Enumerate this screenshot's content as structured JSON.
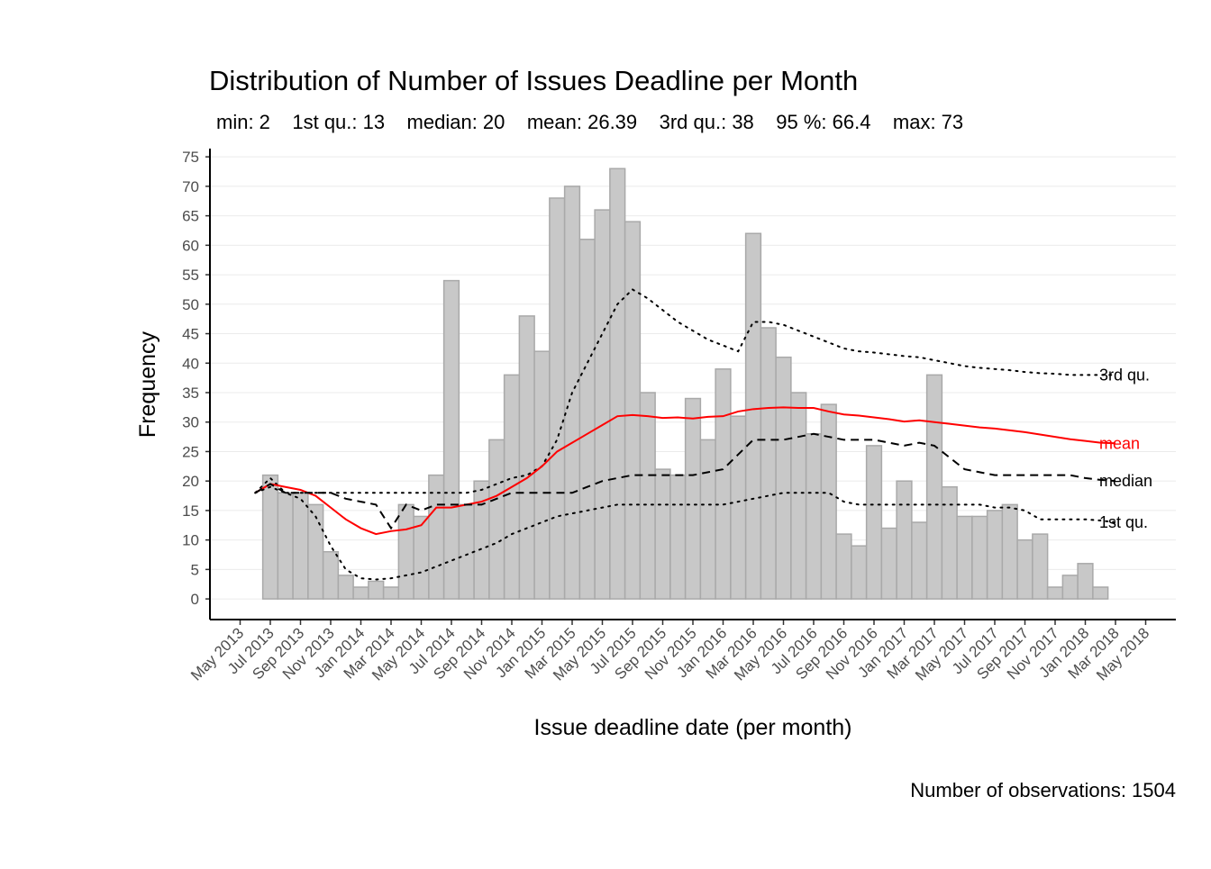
{
  "chart_data": {
    "type": "bar",
    "title": "Distribution of Number of Issues Deadline per Month",
    "subtitle": "min: 2    1st qu.: 13    median: 20    mean: 26.39    3rd qu.: 38    95 %: 66.4    max: 73",
    "caption": "Number of observations: 1504",
    "x_label": "Issue deadline date (per month)",
    "y_label": "Frequency",
    "x": [
      "Jun 2013",
      "Jul 2013",
      "Aug 2013",
      "Sep 2013",
      "Oct 2013",
      "Nov 2013",
      "Dec 2013",
      "Jan 2014",
      "Feb 2014",
      "Mar 2014",
      "Apr 2014",
      "May 2014",
      "Jun 2014",
      "Jul 2014",
      "Aug 2014",
      "Sep 2014",
      "Oct 2014",
      "Nov 2014",
      "Dec 2014",
      "Jan 2015",
      "Feb 2015",
      "Mar 2015",
      "Apr 2015",
      "May 2015",
      "Jun 2015",
      "Jul 2015",
      "Aug 2015",
      "Sep 2015",
      "Oct 2015",
      "Nov 2015",
      "Dec 2015",
      "Jan 2016",
      "Feb 2016",
      "Mar 2016",
      "Apr 2016",
      "May 2016",
      "Jun 2016",
      "Jul 2016",
      "Aug 2016",
      "Sep 2016",
      "Oct 2016",
      "Nov 2016",
      "Dec 2016",
      "Jan 2017",
      "Feb 2017",
      "Mar 2017",
      "Apr 2017",
      "May 2017",
      "Jun 2017",
      "Jul 2017",
      "Aug 2017",
      "Sep 2017",
      "Oct 2017",
      "Nov 2017",
      "Dec 2017",
      "Jan 2018",
      "Feb 2018",
      "Mar 2018"
    ],
    "xlim": [
      "Mar 2013",
      "Jul 2018"
    ],
    "xticks": [
      "May 2013",
      "Jul 2013",
      "Sep 2013",
      "Nov 2013",
      "Jan 2014",
      "Mar 2014",
      "May 2014",
      "Jul 2014",
      "Sep 2014",
      "Nov 2014",
      "Jan 2015",
      "Mar 2015",
      "May 2015",
      "Jul 2015",
      "Sep 2015",
      "Nov 2015",
      "Jan 2016",
      "Mar 2016",
      "May 2016",
      "Jul 2016",
      "Sep 2016",
      "Nov 2016",
      "Jan 2017",
      "Mar 2017",
      "May 2017",
      "Jul 2017",
      "Sep 2017",
      "Nov 2017",
      "Jan 2018",
      "Mar 2018",
      "May 2018"
    ],
    "ylim": [
      -3.5,
      76.4
    ],
    "yticks": [
      0,
      5,
      10,
      15,
      20,
      25,
      30,
      35,
      40,
      45,
      50,
      55,
      60,
      65,
      70,
      75
    ],
    "grid": true,
    "series": [
      {
        "type": "bar",
        "color": "#c8c8c8",
        "edge_color": "#a9a9a9",
        "values": [
          null,
          21,
          18,
          18,
          16,
          8,
          4,
          2,
          3,
          2,
          16,
          14,
          21,
          54,
          16,
          20,
          27,
          38,
          48,
          42,
          68,
          70,
          61,
          66,
          73,
          64,
          35,
          22,
          21,
          34,
          27,
          39,
          31,
          62,
          46,
          41,
          35,
          28,
          33,
          11,
          9,
          26,
          12,
          20,
          13,
          38,
          19,
          14,
          14,
          15,
          16,
          10,
          11,
          2,
          4,
          6,
          2,
          null
        ]
      },
      {
        "type": "line",
        "name": "3rd qu.",
        "color": "#000000",
        "dash": "dotted",
        "values": [
          18,
          20.5,
          18,
          18,
          18,
          18,
          18,
          18,
          18,
          18,
          18,
          18,
          18,
          18,
          18,
          18.5,
          19.5,
          20.5,
          21,
          22.5,
          27,
          35,
          40,
          45,
          50,
          52.5,
          51,
          49,
          47,
          45.5,
          44,
          43,
          42,
          47,
          47,
          46.5,
          45.5,
          44.5,
          43.5,
          42.5,
          42,
          41.8,
          41.5,
          41.2,
          41,
          40.5,
          40,
          39.5,
          39.2,
          39,
          38.8,
          38.5,
          38.3,
          38.2,
          38,
          38,
          38,
          38
        ]
      },
      {
        "type": "line",
        "name": "mean",
        "color": "#ff0000",
        "dash": "solid",
        "values": [
          18,
          19.5,
          19,
          18.5,
          17.5,
          15.5,
          13.5,
          12,
          11,
          11.5,
          11.8,
          12.5,
          15.5,
          15.5,
          16,
          16.5,
          17.5,
          19,
          20.5,
          22.5,
          25,
          26.5,
          28,
          29.5,
          31,
          31.2,
          31,
          30.7,
          30.8,
          30.6,
          30.9,
          31,
          31.8,
          32.2,
          32.4,
          32.5,
          32.4,
          32.4,
          31.8,
          31.3,
          31.1,
          30.8,
          30.5,
          30.1,
          30.3,
          30,
          29.7,
          29.4,
          29.1,
          28.9,
          28.6,
          28.3,
          27.9,
          27.5,
          27.1,
          26.8,
          26.5,
          26.4
        ]
      },
      {
        "type": "line",
        "name": "median",
        "color": "#000000",
        "dash": "dashed",
        "values": [
          18,
          19.5,
          18,
          18,
          18,
          18,
          17,
          16.5,
          16,
          12,
          16,
          15,
          16,
          16,
          16,
          16,
          17,
          18,
          18,
          18,
          18,
          18,
          19,
          20,
          20.5,
          21,
          21,
          21,
          21,
          21,
          21.5,
          22,
          24.5,
          27,
          27,
          27,
          27.5,
          28,
          27.5,
          27,
          27,
          27,
          26.5,
          26,
          26.5,
          26,
          24,
          22,
          21.5,
          21,
          21,
          21,
          21,
          21,
          21,
          20.5,
          20.2,
          20
        ]
      },
      {
        "type": "line",
        "name": "1st qu.",
        "color": "#000000",
        "dash": "dotted",
        "values": [
          18,
          19,
          18,
          17,
          14,
          9,
          5,
          3.5,
          3.3,
          3.5,
          4,
          4.5,
          5.5,
          6.5,
          7.5,
          8.5,
          9.5,
          11,
          12,
          13,
          14,
          14.5,
          15,
          15.5,
          16,
          16,
          16,
          16,
          16,
          16,
          16,
          16,
          16.5,
          17,
          17.5,
          18,
          18,
          18,
          18,
          16.5,
          16,
          16,
          16,
          16,
          16,
          16,
          16,
          16,
          16,
          15.5,
          15.5,
          15,
          13.5,
          13.5,
          13.5,
          13.5,
          13.3,
          13
        ]
      }
    ]
  }
}
